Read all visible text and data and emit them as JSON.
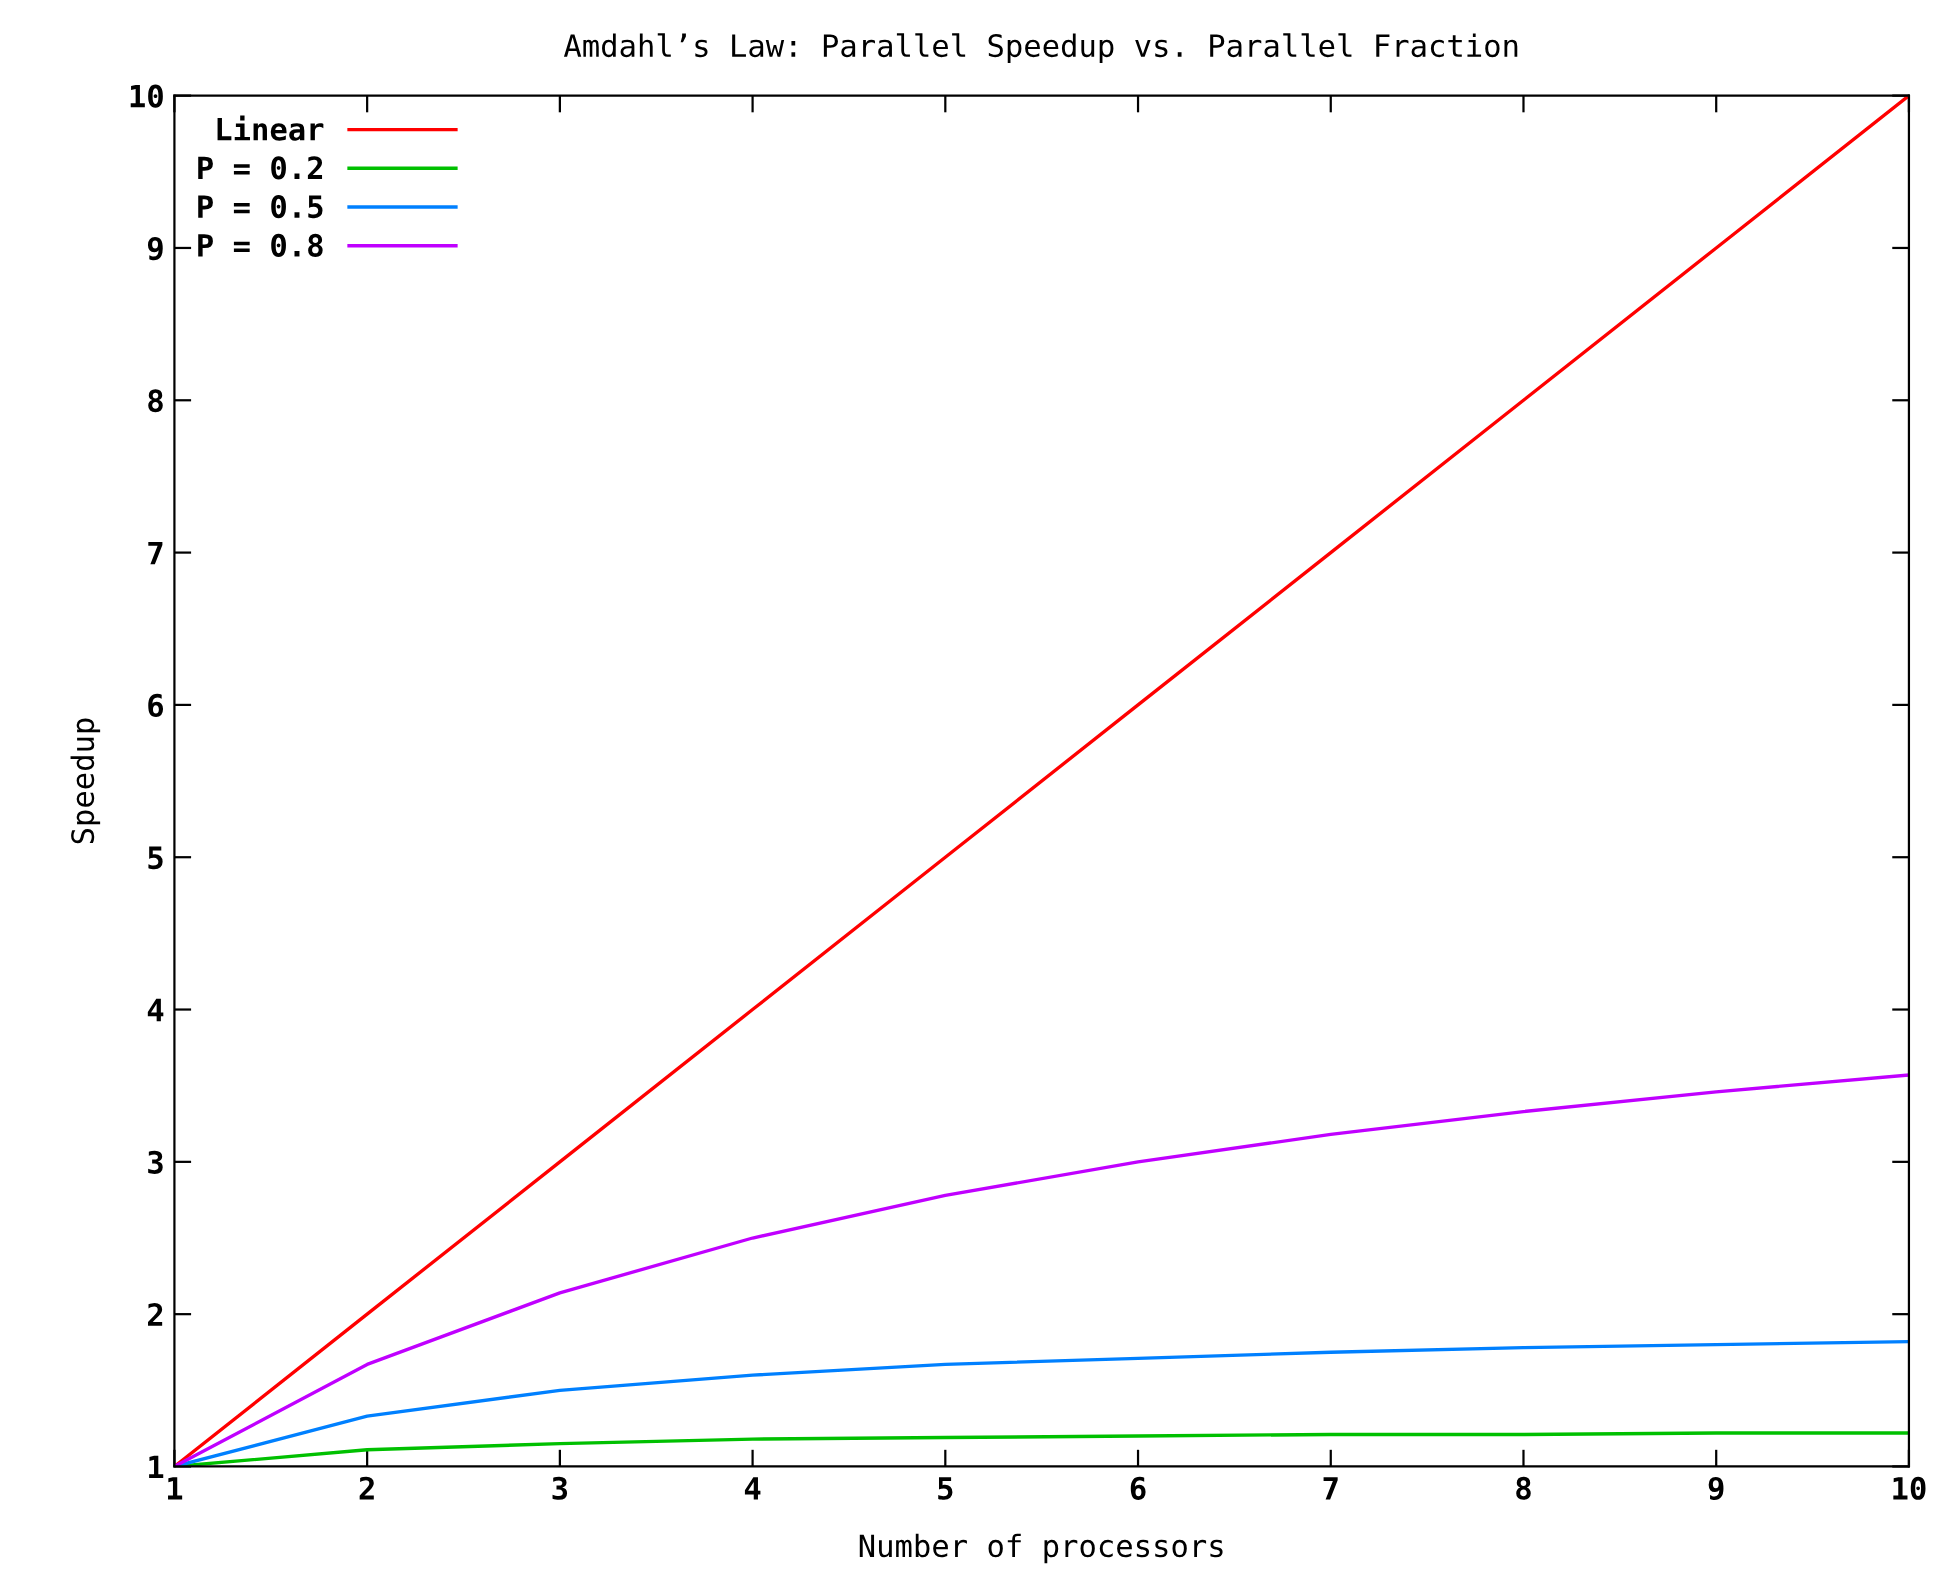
{
  "chart_data": {
    "type": "line",
    "title": "Amdahl’s Law: Parallel Speedup vs. Parallel Fraction",
    "xlabel": "Number of processors",
    "ylabel": "Speedup",
    "x": [
      1,
      2,
      3,
      4,
      5,
      6,
      7,
      8,
      9,
      10
    ],
    "series": [
      {
        "name": "Linear",
        "color": "#ff0000",
        "values": [
          1,
          2,
          3,
          4,
          5,
          6,
          7,
          8,
          9,
          10
        ]
      },
      {
        "name": "P = 0.2",
        "color": "#00c000",
        "values": [
          1,
          1.11,
          1.15,
          1.18,
          1.19,
          1.2,
          1.21,
          1.21,
          1.22,
          1.22
        ]
      },
      {
        "name": "P = 0.5",
        "color": "#0080ff",
        "values": [
          1,
          1.33,
          1.5,
          1.6,
          1.67,
          1.71,
          1.75,
          1.78,
          1.8,
          1.82
        ]
      },
      {
        "name": "P = 0.8",
        "color": "#c000ff",
        "values": [
          1,
          1.67,
          2.14,
          2.5,
          2.78,
          3,
          3.18,
          3.33,
          3.46,
          3.57
        ]
      }
    ],
    "xlim": [
      1,
      10
    ],
    "xticks": [
      1,
      2,
      3,
      4,
      5,
      6,
      7,
      8,
      9,
      10
    ],
    "ylim": [
      1,
      10
    ],
    "yticks": [
      1,
      2,
      3,
      4,
      5,
      6,
      7,
      8,
      9,
      10
    ],
    "grid": false,
    "legend": "top left",
    "marker": "none",
    "line_style": "solid"
  }
}
